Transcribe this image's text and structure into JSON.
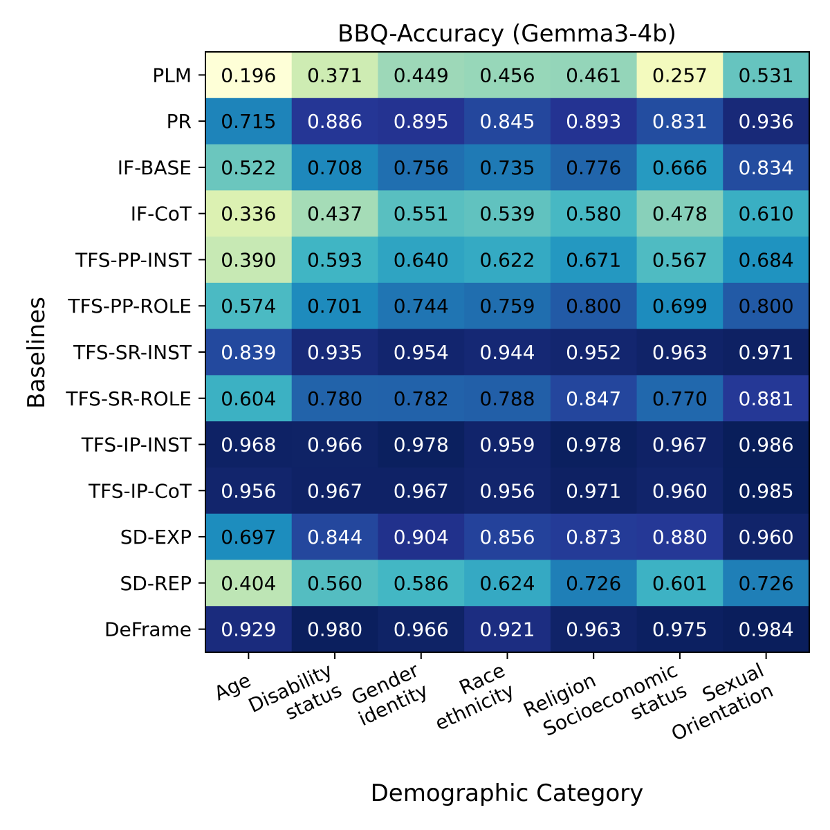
{
  "chart_data": {
    "type": "heatmap",
    "title": "BBQ-Accuracy (Gemma3-4b)",
    "xlabel": "Demographic Category",
    "ylabel": "Baselines",
    "colormap": "YlGnBu",
    "value_range": [
      0.19,
      0.99
    ],
    "columns": [
      [
        "Age"
      ],
      [
        "Disability",
        "status"
      ],
      [
        "Gender",
        "identity"
      ],
      [
        "Race",
        "ethnicity"
      ],
      [
        "Religion"
      ],
      [
        "Socioeconomic",
        "status"
      ],
      [
        "Sexual",
        "Orientation"
      ]
    ],
    "rows": [
      "PLM",
      "PR",
      "IF-BASE",
      "IF-CoT",
      "TFS-PP-INST",
      "TFS-PP-ROLE",
      "TFS-SR-INST",
      "TFS-SR-ROLE",
      "TFS-IP-INST",
      "TFS-IP-CoT",
      "SD-EXP",
      "SD-REP",
      "DeFrame"
    ],
    "values": [
      [
        0.196,
        0.371,
        0.449,
        0.456,
        0.461,
        0.257,
        0.531
      ],
      [
        0.715,
        0.886,
        0.895,
        0.845,
        0.893,
        0.831,
        0.936
      ],
      [
        0.522,
        0.708,
        0.756,
        0.735,
        0.776,
        0.666,
        0.834
      ],
      [
        0.336,
        0.437,
        0.551,
        0.539,
        0.58,
        0.478,
        0.61
      ],
      [
        0.39,
        0.593,
        0.64,
        0.622,
        0.671,
        0.567,
        0.684
      ],
      [
        0.574,
        0.701,
        0.744,
        0.759,
        0.8,
        0.699,
        0.8
      ],
      [
        0.839,
        0.935,
        0.954,
        0.944,
        0.952,
        0.963,
        0.971
      ],
      [
        0.604,
        0.78,
        0.782,
        0.788,
        0.847,
        0.77,
        0.881
      ],
      [
        0.968,
        0.966,
        0.978,
        0.959,
        0.978,
        0.967,
        0.986
      ],
      [
        0.956,
        0.967,
        0.967,
        0.956,
        0.971,
        0.96,
        0.985
      ],
      [
        0.697,
        0.844,
        0.904,
        0.856,
        0.873,
        0.88,
        0.96
      ],
      [
        0.404,
        0.56,
        0.586,
        0.624,
        0.726,
        0.601,
        0.726
      ],
      [
        0.929,
        0.98,
        0.966,
        0.921,
        0.963,
        0.975,
        0.984
      ]
    ]
  }
}
